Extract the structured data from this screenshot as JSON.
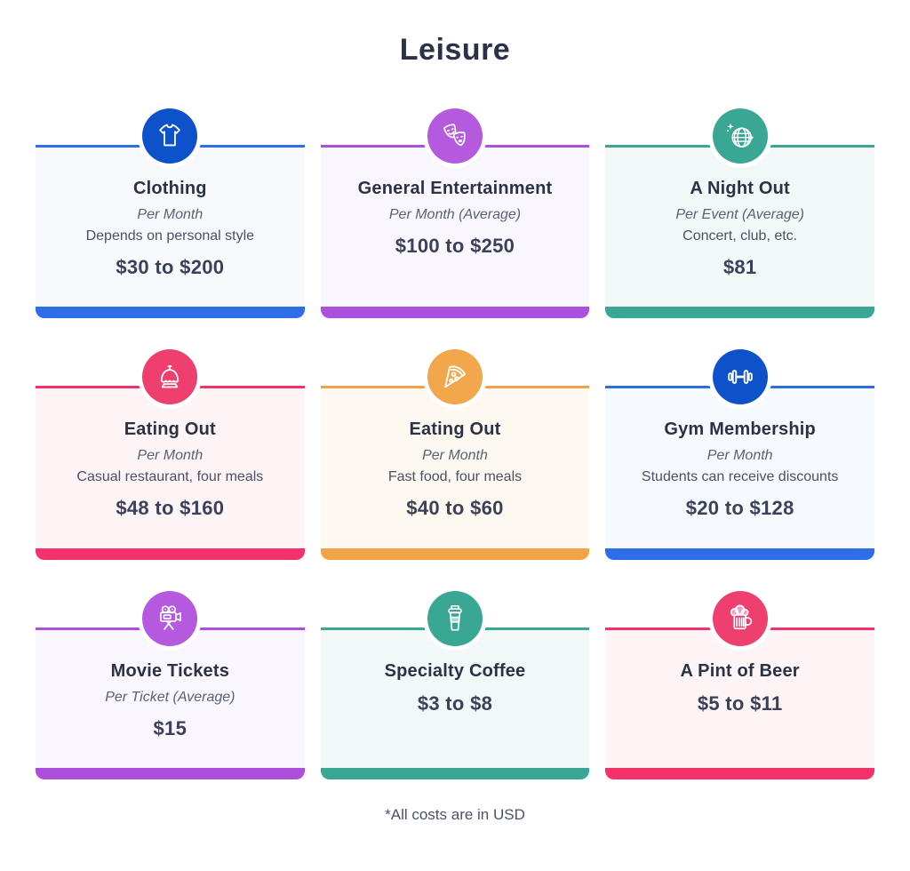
{
  "page": {
    "title": "Leisure",
    "footnote": "*All costs are in USD"
  },
  "cards": [
    {
      "title": "Clothing",
      "subtitle": "Per Month",
      "description": "Depends on personal style",
      "price": "$30 to $200",
      "icon": "tshirt-icon",
      "colors": {
        "circle": "#0d52cb",
        "bar": "#2d6de8",
        "bg": "#f7f9fd"
      }
    },
    {
      "title": "General Entertainment",
      "subtitle": "Per Month (Average)",
      "price": "$100 to $250",
      "icon": "theater-masks-icon",
      "colors": {
        "circle": "#b55ade",
        "bar": "#ab4fdc",
        "bg": "#faf6fd"
      }
    },
    {
      "title": "A Night Out",
      "subtitle": "Per Event (Average)",
      "description": "Concert, club, etc.",
      "price": "$81",
      "icon": "disco-ball-icon",
      "colors": {
        "circle": "#3aa794",
        "bar": "#3aa794",
        "bg": "#f2f8f7"
      }
    },
    {
      "title": "Eating Out",
      "subtitle": "Per Month",
      "description": "Casual restaurant, four meals",
      "price": "$48 to $160",
      "icon": "service-bell-icon",
      "colors": {
        "circle": "#ee3f6e",
        "bar": "#f3326c",
        "bg": "#fdf4f6"
      }
    },
    {
      "title": "Eating Out",
      "subtitle": "Per Month",
      "description": "Fast food, four meals",
      "price": "$40 to $60",
      "icon": "pizza-icon",
      "colors": {
        "circle": "#f2a74d",
        "bar": "#f0a348",
        "bg": "#fdf8f0"
      }
    },
    {
      "title": "Gym Membership",
      "subtitle": "Per Month",
      "description": "Students can receive discounts",
      "price": "$20 to $128",
      "icon": "dumbbell-icon",
      "colors": {
        "circle": "#0d52cb",
        "bar": "#2d6de8",
        "bg": "#f6f9fd"
      }
    },
    {
      "title": "Movie Tickets",
      "subtitle": "Per Ticket (Average)",
      "price": "$15",
      "icon": "movie-camera-icon",
      "colors": {
        "circle": "#b55ade",
        "bar": "#ab4fdc",
        "bg": "#faf6fd"
      }
    },
    {
      "title": "Specialty Coffee",
      "price": "$3 to $8",
      "icon": "coffee-cup-icon",
      "colors": {
        "circle": "#3aa794",
        "bar": "#3aa794",
        "bg": "#f2f8f7"
      }
    },
    {
      "title": "A Pint of Beer",
      "price": "$5 to $11",
      "icon": "beer-mug-icon",
      "colors": {
        "circle": "#ee3f6e",
        "bar": "#f3326c",
        "bg": "#fdf4f6"
      }
    }
  ]
}
